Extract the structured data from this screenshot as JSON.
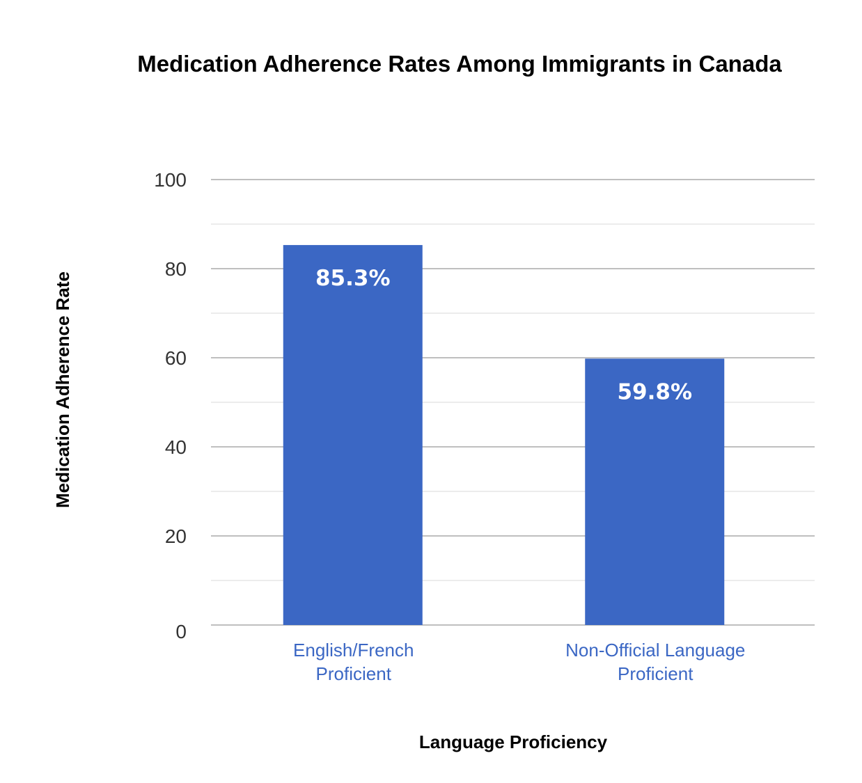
{
  "chart_data": {
    "type": "bar",
    "title": "Medication Adherence Rates Among Immigrants in Canada",
    "xlabel": "Language Proficiency",
    "ylabel": "Medication Adherence Rate",
    "categories": [
      [
        "English/French",
        "Proficient"
      ],
      [
        "Non-Official Language",
        "Proficient"
      ]
    ],
    "series": [
      {
        "name": "Medication Adherence Rate",
        "values": [
          85.3,
          59.8
        ],
        "data_labels": [
          "85.3%",
          "59.8%"
        ]
      }
    ],
    "ylim": [
      0,
      100
    ],
    "yticks": [
      "0",
      "20",
      "40",
      "60",
      "80",
      "100"
    ],
    "ytick_values": [
      0,
      20,
      40,
      60,
      80,
      100
    ],
    "minor_gridlines": [
      10,
      30,
      50,
      70,
      90
    ],
    "grid": true,
    "legend": "none",
    "colors": {
      "bar": "#3b67c4",
      "category_label": "#3b67c4",
      "major_grid": "#bfbfbf",
      "minor_grid": "#e6e6e6",
      "data_label": "#ffffff"
    }
  }
}
